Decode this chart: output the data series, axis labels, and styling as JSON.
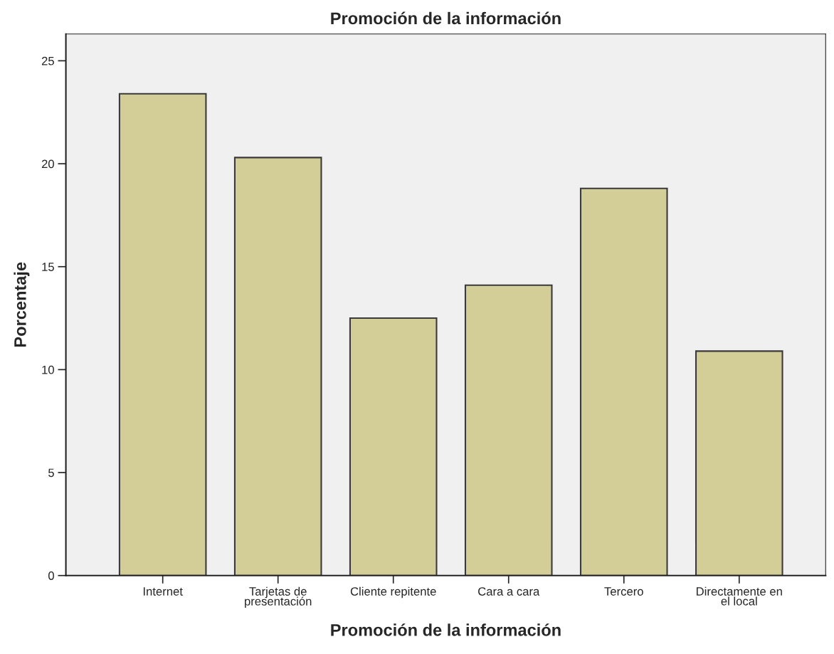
{
  "chart_data": {
    "type": "bar",
    "title": "Promoción de la información",
    "xlabel": "Promoción de la información",
    "ylabel": "Porcentaje",
    "categories": [
      "Internet",
      "Tarjetas de\npresentación",
      "Cliente repitente",
      "Cara a cara",
      "Tercero",
      "Directamente en\nel local"
    ],
    "values": [
      23.4,
      20.3,
      12.5,
      14.1,
      18.8,
      10.9
    ],
    "color": "#d3ce97",
    "ylim": [
      0,
      26.3
    ],
    "yticks": [
      0,
      5,
      10,
      15,
      20,
      25
    ],
    "grid": false
  }
}
